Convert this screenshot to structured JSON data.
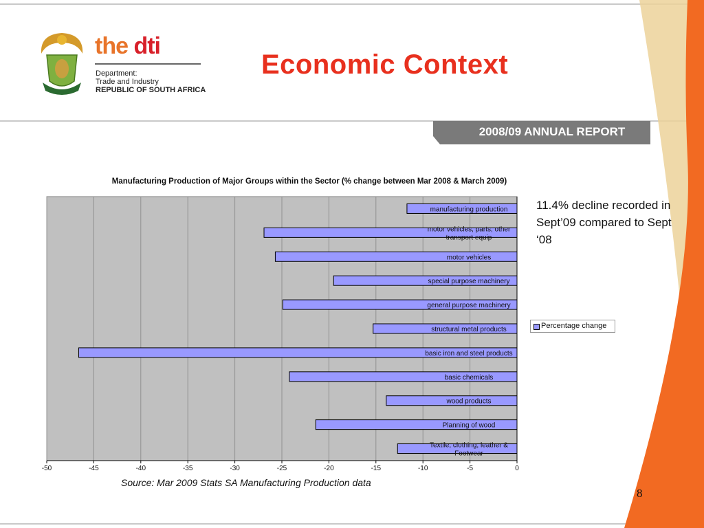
{
  "header": {
    "logo_wordmark_the": "the",
    "logo_wordmark_dti": "dti",
    "department_lines": [
      "Department:",
      "Trade and Industry",
      "REPUBLIC OF SOUTH AFRICA"
    ],
    "title": "Economic Context"
  },
  "banner": {
    "text": "2008/09 ANNUAL REPORT"
  },
  "side_note": {
    "text": "11.4% decline recorded in Sept’09 compared to Sept ‘08"
  },
  "source_note": "Source: Mar 2009 Stats SA Manufacturing Production data",
  "page_number": "8",
  "colors": {
    "title": "#e8301e",
    "banner": "#7a7a7a",
    "orange_stripe": "#f26a22",
    "plot_background": "#c0c0c0",
    "bar_fill": "#9999ff"
  },
  "chart_data": {
    "type": "bar",
    "orientation": "horizontal",
    "title": "Manufacturing Production of Major Groups within the Sector (% change between Mar 2008 & March 2009)",
    "categories": [
      "manufacturing production",
      "motor vehicles, parts, other transport equip",
      "motor vehicles",
      "special purpose machinery",
      "general purpose machinery",
      "structural metal products",
      "basic iron and steel products",
      "basic chemicals",
      "wood products",
      "Planning of wood",
      "Textile, clothing, leather & Footwear"
    ],
    "series": [
      {
        "name": "Percentage change",
        "values": [
          -11.7,
          -26.9,
          -25.7,
          -19.5,
          -24.9,
          -15.3,
          -46.6,
          -24.2,
          -13.9,
          -21.4,
          -12.7
        ]
      }
    ],
    "xlim": [
      -50,
      0
    ],
    "xticks": [
      "-50",
      "-45",
      "-40",
      "-35",
      "-30",
      "-25",
      "-20",
      "-15",
      "-10",
      "-5",
      "0"
    ],
    "grid": true,
    "legend": "right"
  }
}
